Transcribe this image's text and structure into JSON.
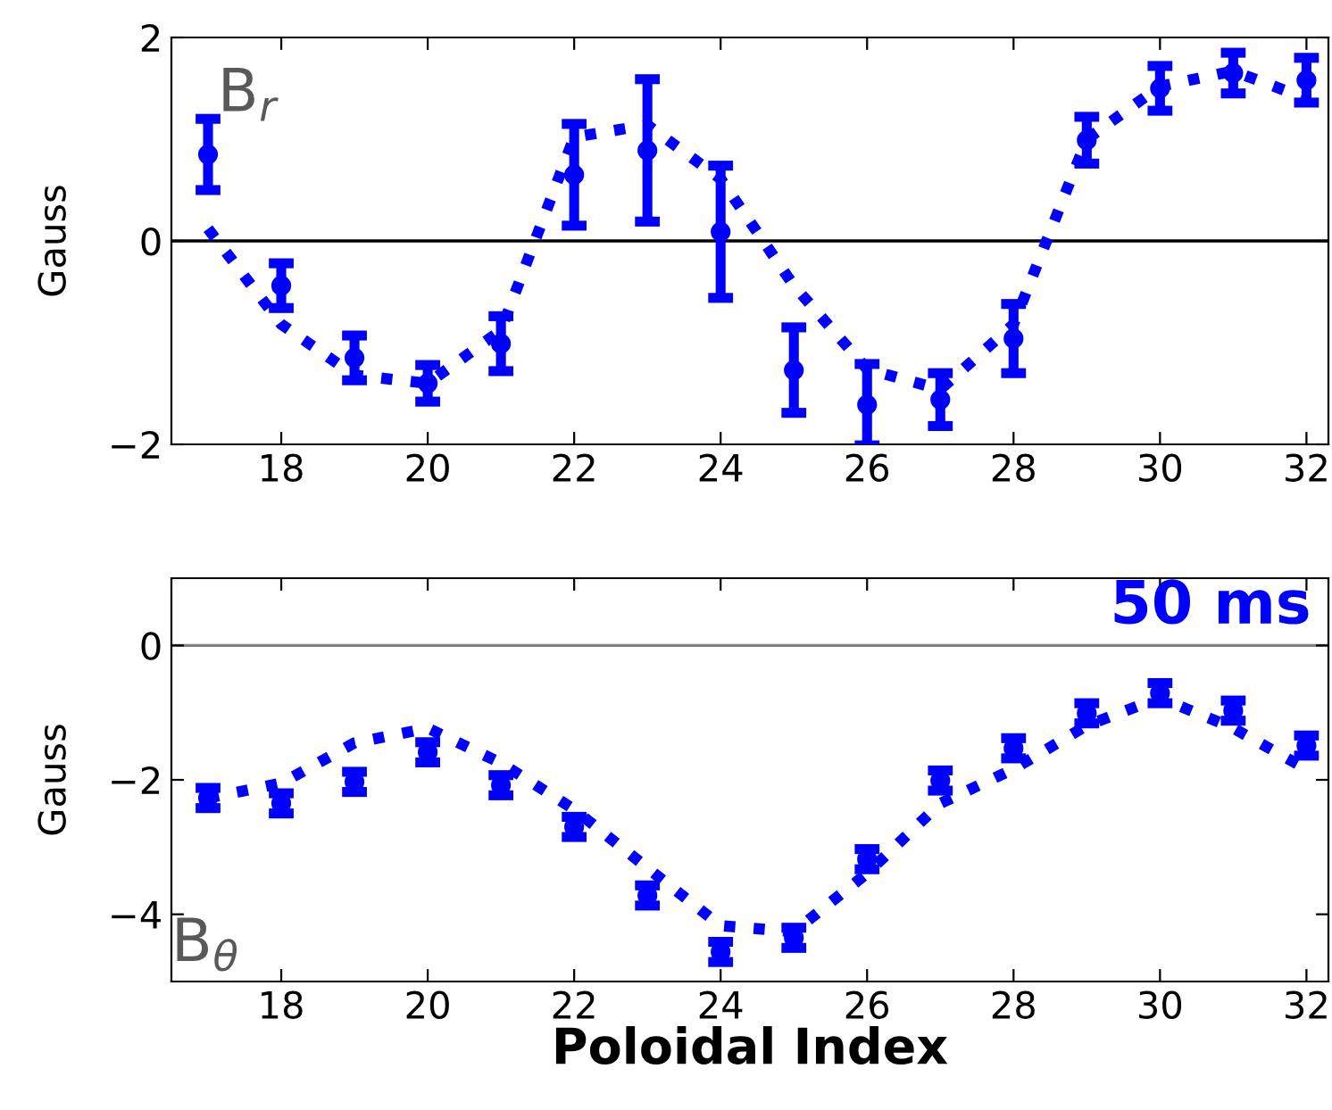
{
  "chart_data": [
    {
      "type": "scatter",
      "ylabel": "Gauss",
      "annotations": [
        "B$_{r}$"
      ],
      "x": [
        17,
        18,
        19,
        20,
        21,
        22,
        23,
        24,
        25,
        26,
        27,
        28,
        29,
        30,
        31,
        32
      ],
      "series": [
        {
          "color": "#0000ff",
          "marker": "circle",
          "values": [
            0.85,
            -0.44,
            -1.15,
            -1.4,
            -1.01,
            0.65,
            0.89,
            0.09,
            -1.27,
            -1.61,
            -1.56,
            -0.96,
            0.99,
            1.5,
            1.65,
            1.58
          ],
          "errors": [
            0.35,
            0.22,
            0.22,
            0.18,
            0.27,
            0.5,
            0.7,
            0.65,
            0.42,
            0.4,
            0.26,
            0.34,
            0.23,
            0.22,
            0.2,
            0.22
          ]
        },
        {
          "type": "line",
          "color": "#0000ff",
          "line_style": "dotted",
          "marker": "none",
          "values": [
            0.12,
            -0.82,
            -1.32,
            -1.4,
            -0.88,
            1.02,
            1.14,
            0.61,
            -0.44,
            -1.26,
            -1.46,
            -0.82,
            1.0,
            1.52,
            1.67,
            1.4
          ]
        }
      ],
      "xlim": [
        16.5,
        32.3
      ],
      "xticks": [
        18,
        20,
        22,
        24,
        26,
        28,
        30,
        32
      ],
      "ylim": [
        -2,
        2
      ],
      "yticks": [
        -2,
        0,
        2
      ],
      "ref_lines": [
        {
          "axis": "y",
          "value": 0,
          "color": "#000000"
        }
      ],
      "grid": false,
      "legend": false
    },
    {
      "type": "scatter",
      "ylabel": "Gauss",
      "xlabel": "Poloidal Index",
      "annotations": [
        "B$_{θ}$",
        "50 ms"
      ],
      "x": [
        17,
        18,
        19,
        20,
        21,
        22,
        23,
        24,
        25,
        26,
        27,
        28,
        29,
        30,
        31,
        32
      ],
      "series": [
        {
          "color": "#0000ff",
          "marker": "circle",
          "values": [
            -2.27,
            -2.35,
            -2.03,
            -1.59,
            -2.08,
            -2.7,
            -3.72,
            -4.56,
            -4.35,
            -3.18,
            -2.01,
            -1.53,
            -1.01,
            -0.71,
            -0.97,
            -1.49
          ],
          "errors": [
            0.15,
            0.15,
            0.15,
            0.15,
            0.15,
            0.15,
            0.15,
            0.15,
            0.15,
            0.15,
            0.15,
            0.15,
            0.15,
            0.15,
            0.15,
            0.15
          ]
        },
        {
          "type": "line",
          "color": "#0000ff",
          "line_style": "dotted",
          "marker": "none",
          "values": [
            -2.27,
            -2.05,
            -1.45,
            -1.23,
            -1.75,
            -2.44,
            -3.31,
            -4.17,
            -4.26,
            -3.39,
            -2.35,
            -1.84,
            -1.19,
            -0.78,
            -1.23,
            -1.84
          ]
        }
      ],
      "xlim": [
        16.5,
        32.3
      ],
      "xticks": [
        18,
        20,
        22,
        24,
        26,
        28,
        30,
        32
      ],
      "ylim": [
        -5,
        1
      ],
      "yticks": [
        -4,
        -2,
        0
      ],
      "ref_lines": [
        {
          "axis": "y",
          "value": 0,
          "color": "#808080"
        }
      ],
      "grid": false,
      "legend": false
    }
  ]
}
